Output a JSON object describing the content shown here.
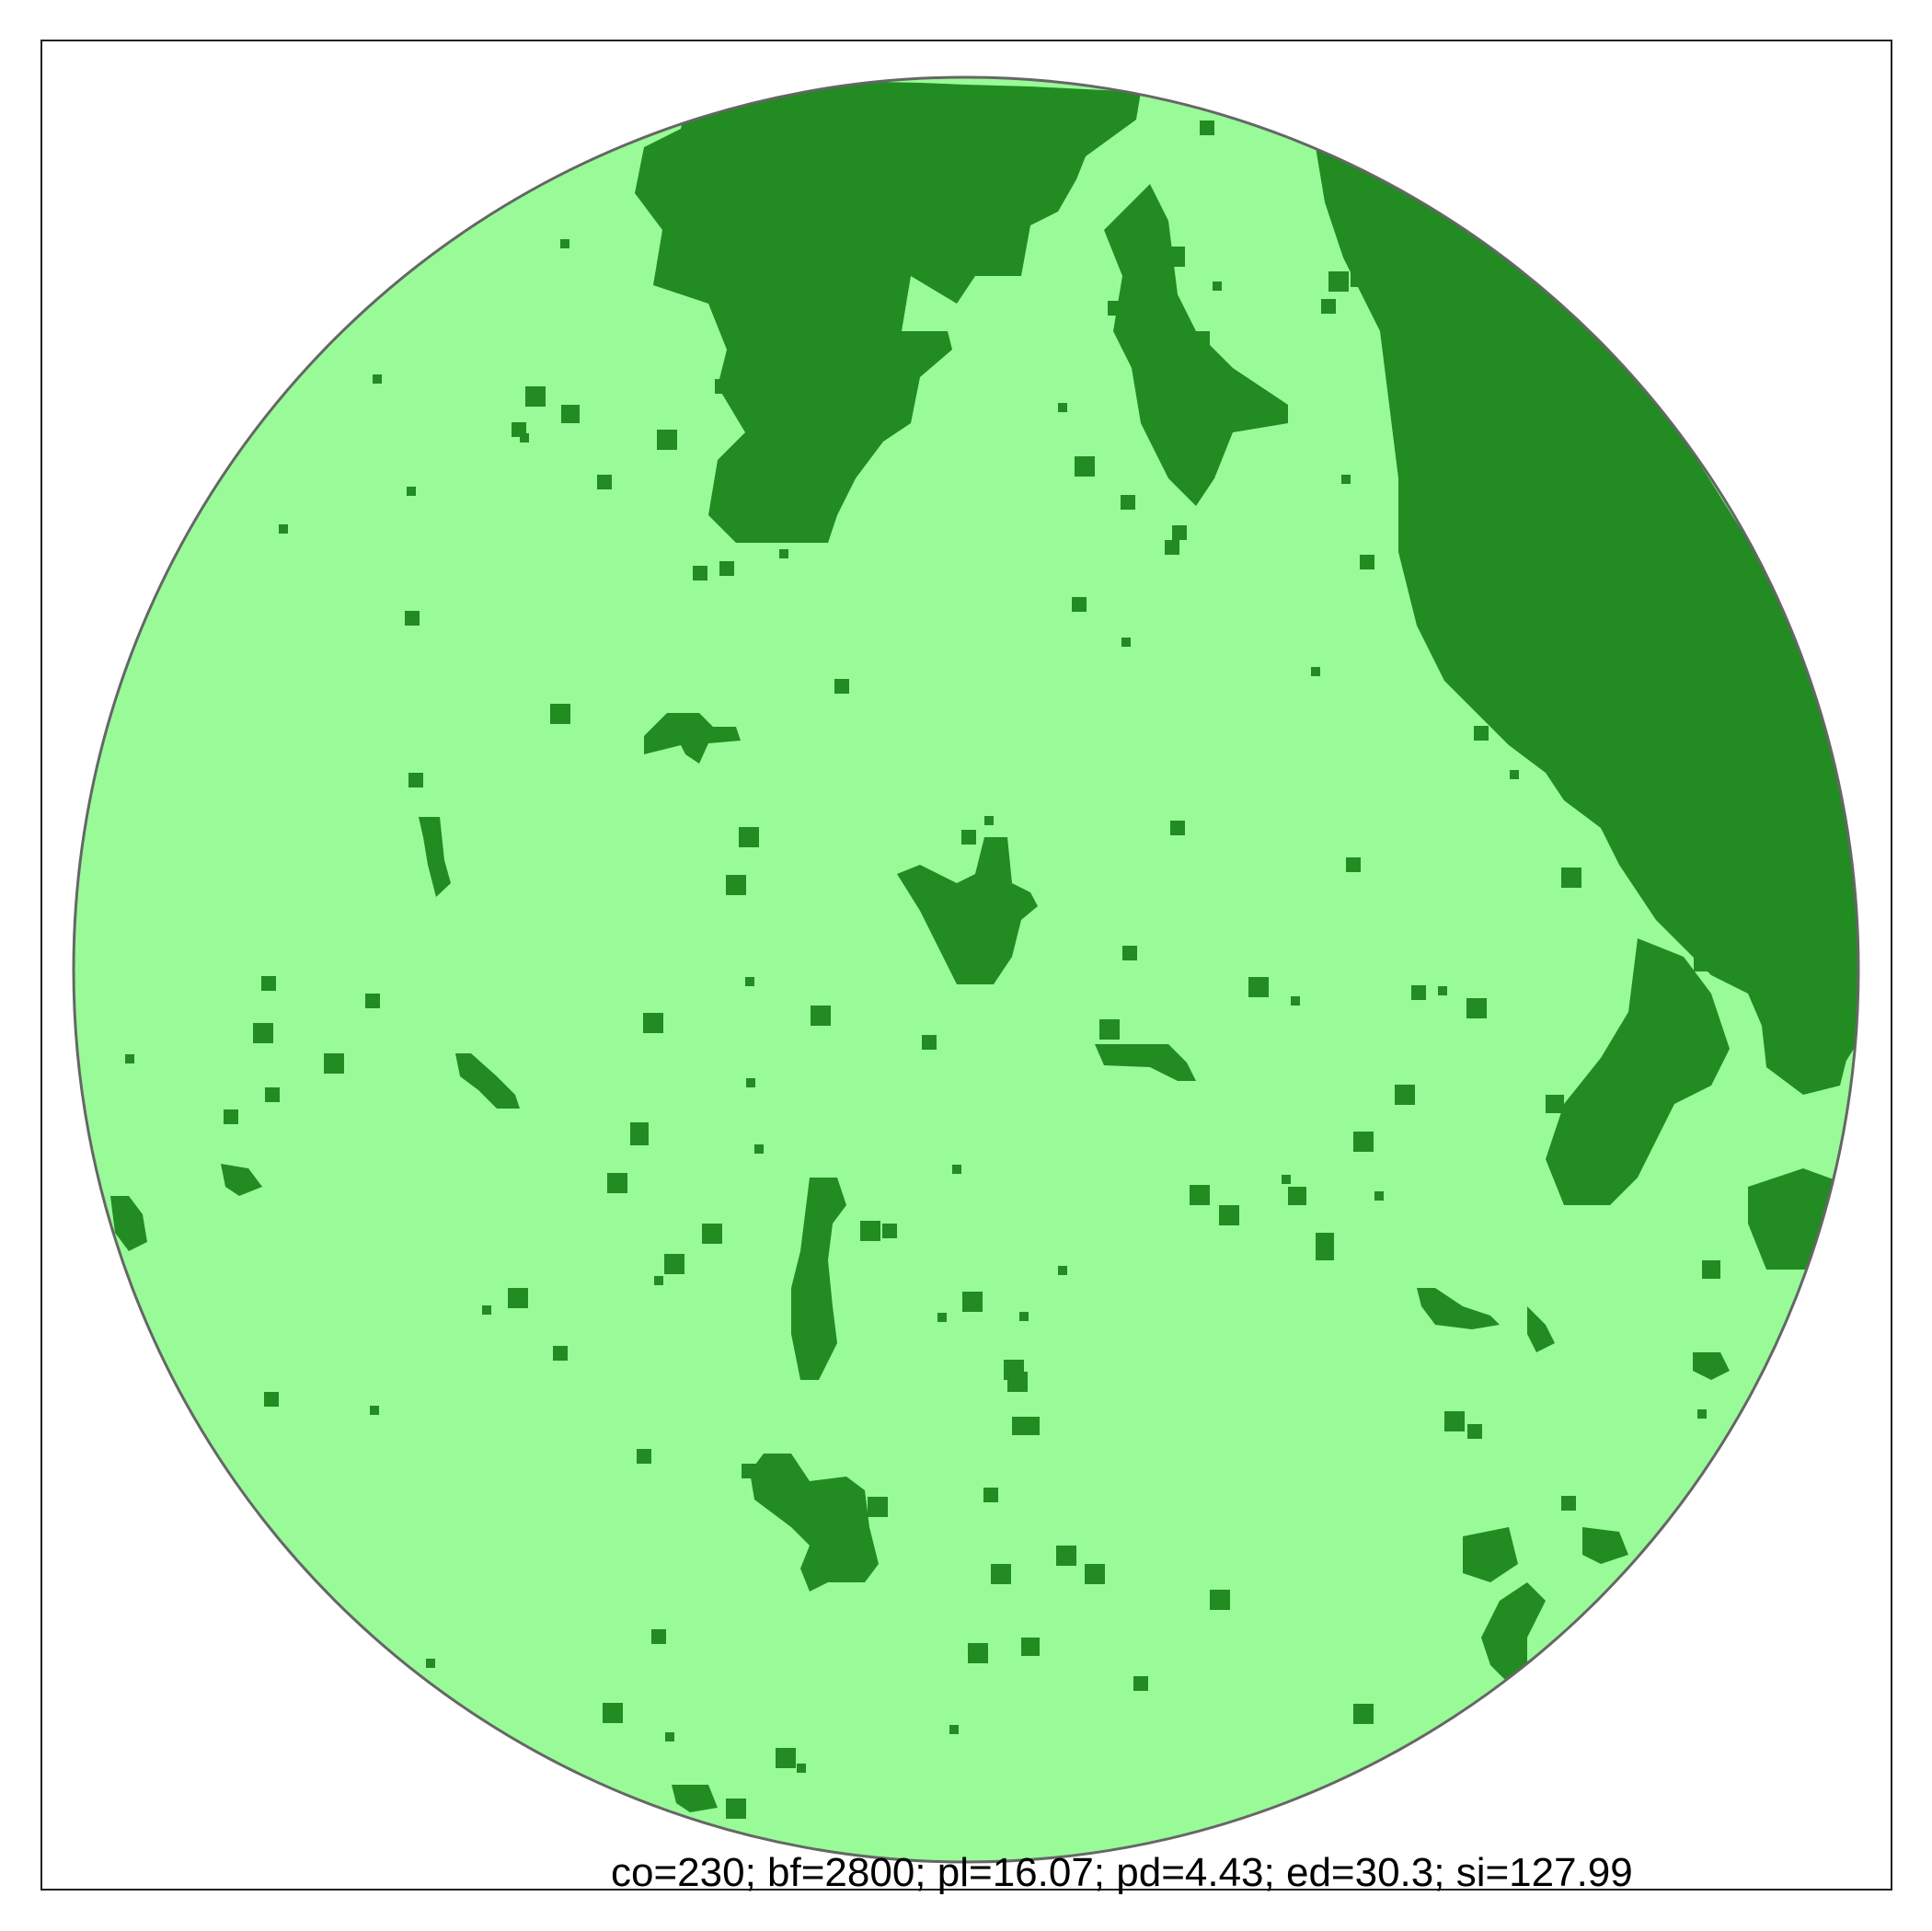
{
  "stats_text": "co=230; bf=2800; pl=16.07; pd=4.43; ed=30.3; si=127.99",
  "colors": {
    "background_class": "#98fb98",
    "patch_class": "#228b22",
    "circle_border": "#666666",
    "frame_border": "#222222"
  },
  "legend": {
    "classes": [
      {
        "icon": "light-green-cell"
      },
      {
        "icon": "dark-green-cell"
      }
    ]
  }
}
